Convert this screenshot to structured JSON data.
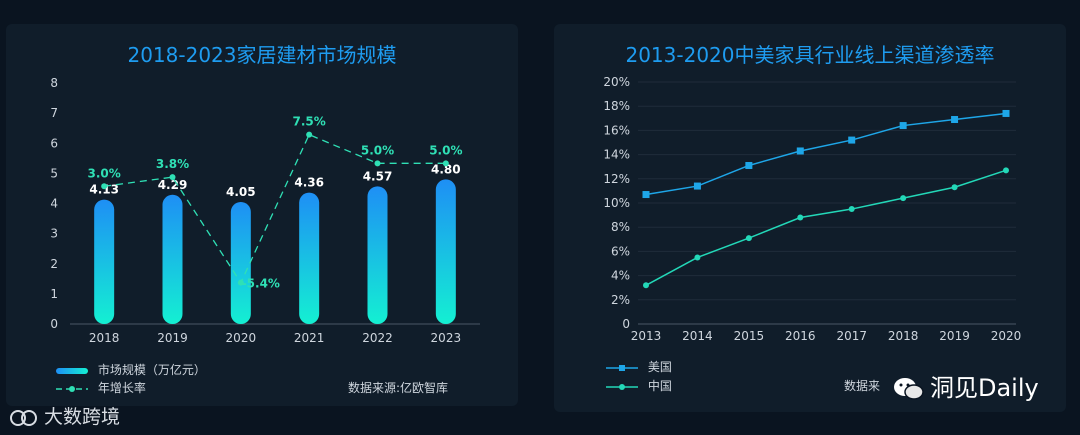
{
  "chart_data": [
    {
      "type": "bar",
      "title": "2018-2023家居建材市场规模",
      "categories": [
        "2018",
        "2019",
        "2020",
        "2021",
        "2022",
        "2023"
      ],
      "series": [
        {
          "name": "市场规模（万亿元）",
          "type": "bar",
          "values": [
            4.13,
            4.29,
            4.05,
            4.36,
            4.57,
            4.8
          ],
          "labels": [
            "4.13",
            "4.29",
            "4.05",
            "4.36",
            "4.57",
            "4.80"
          ]
        },
        {
          "name": "年增长率",
          "type": "line",
          "values": [
            3.0,
            3.8,
            -5.4,
            7.5,
            5.0,
            5.0
          ],
          "labels": [
            "3.0%",
            "3.8%",
            "-5.4%",
            "7.5%",
            "5.0%",
            "5.0%"
          ]
        }
      ],
      "ylim": [
        0,
        8
      ],
      "yticks": [
        "0",
        "1",
        "2",
        "3",
        "4",
        "5",
        "6",
        "7",
        "8"
      ],
      "source": "数据来源:亿欧智库"
    },
    {
      "type": "line",
      "title": "2013-2020中美家具行业线上渠道渗透率",
      "x": [
        "2013",
        "2014",
        "2015",
        "2016",
        "2017",
        "2018",
        "2019",
        "2020"
      ],
      "series": [
        {
          "name": "美国",
          "values": [
            10.7,
            11.4,
            13.1,
            14.3,
            15.2,
            16.4,
            16.9,
            17.4
          ]
        },
        {
          "name": "中国",
          "values": [
            3.2,
            5.5,
            7.1,
            8.8,
            9.5,
            10.4,
            11.3,
            12.7
          ]
        }
      ],
      "ylim": [
        0,
        20
      ],
      "yticks": [
        "0",
        "2%",
        "4%",
        "6%",
        "8%",
        "10%",
        "12%",
        "14%",
        "16%",
        "18%",
        "20%"
      ],
      "source": "数据来"
    }
  ],
  "colors": {
    "bar_top": "#1e8ff5",
    "bar_bottom": "#14f0d2",
    "growth": "#2fe0b5",
    "us": "#1ea6e8",
    "cn": "#23d8b8"
  },
  "watermark_left": "大数跨境",
  "watermark_right": "洞见Daily"
}
